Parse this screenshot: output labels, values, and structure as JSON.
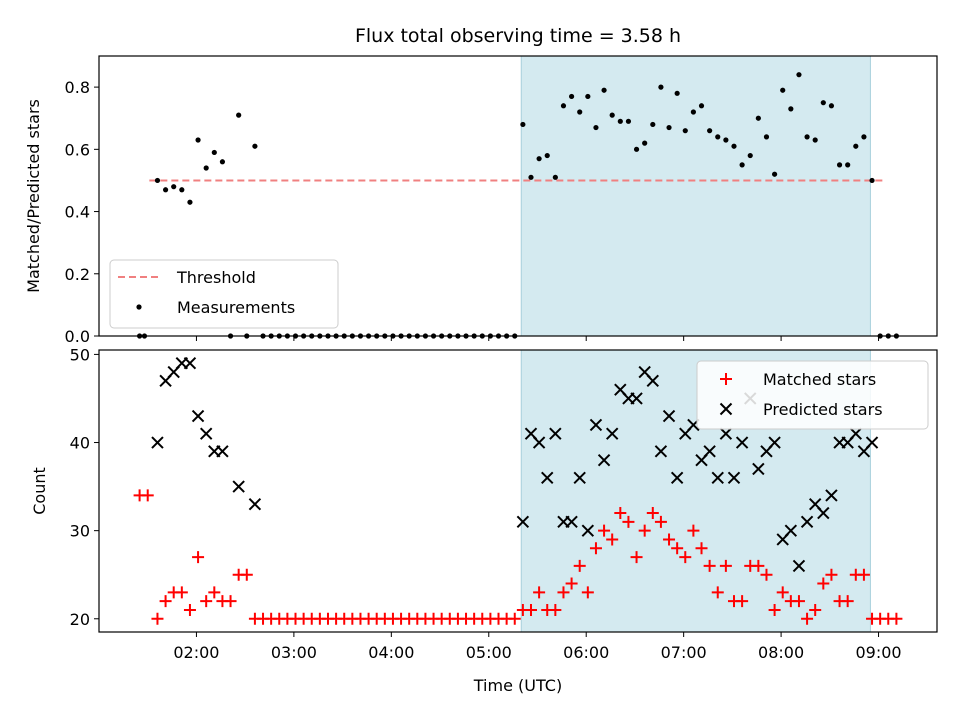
{
  "title": "Flux total observing time = 3.58 h",
  "chart_data": [
    {
      "type": "scatter",
      "ylabel": "Matched/Predicted stars",
      "ylim": [
        0.0,
        0.9
      ],
      "yticks": [
        "0.0",
        "0.2",
        "0.4",
        "0.6",
        "0.8"
      ],
      "ytick_values": [
        0.0,
        0.2,
        0.4,
        0.6,
        0.8
      ],
      "threshold": {
        "name": "Threshold",
        "value": 0.5,
        "x_range": [
          "01:31",
          "09:04"
        ],
        "color": "#f08080"
      },
      "shaded_region": {
        "x_range": [
          "05:20",
          "08:55"
        ],
        "color": "#d4eaf0"
      },
      "legend": {
        "location": "lower-left",
        "entries": [
          "Threshold",
          "Measurements"
        ]
      },
      "series": [
        {
          "name": "Measurements",
          "color": "#000000",
          "x": [
            "01:25",
            "01:28",
            "01:36",
            "01:41",
            "01:46",
            "01:51",
            "01:56",
            "02:01",
            "02:06",
            "02:11",
            "02:16",
            "02:21",
            "02:26",
            "02:31",
            "02:36",
            "02:41",
            "02:46",
            "02:51",
            "02:56",
            "03:01",
            "03:06",
            "03:11",
            "03:16",
            "03:21",
            "03:26",
            "03:31",
            "03:36",
            "03:41",
            "03:46",
            "03:51",
            "03:56",
            "04:01",
            "04:06",
            "04:11",
            "04:16",
            "04:21",
            "04:26",
            "04:31",
            "04:36",
            "04:41",
            "04:46",
            "04:51",
            "04:56",
            "05:01",
            "05:06",
            "05:11",
            "05:16",
            "05:21",
            "05:26",
            "05:31",
            "05:36",
            "05:41",
            "05:46",
            "05:51",
            "05:56",
            "06:01",
            "06:06",
            "06:11",
            "06:16",
            "06:21",
            "06:26",
            "06:31",
            "06:36",
            "06:41",
            "06:46",
            "06:51",
            "06:56",
            "07:01",
            "07:06",
            "07:11",
            "07:16",
            "07:21",
            "07:26",
            "07:31",
            "07:36",
            "07:41",
            "07:46",
            "07:51",
            "07:56",
            "08:01",
            "08:06",
            "08:11",
            "08:16",
            "08:21",
            "08:26",
            "08:31",
            "08:36",
            "08:41",
            "08:46",
            "08:51",
            "08:56",
            "09:01",
            "09:06",
            "09:11"
          ],
          "y": [
            0,
            0,
            0.5,
            0.47,
            0.48,
            0.47,
            0.43,
            0.63,
            0.54,
            0.59,
            0.56,
            0,
            0.71,
            0,
            0.61,
            0,
            0,
            0,
            0,
            0,
            0,
            0,
            0,
            0,
            0,
            0,
            0,
            0,
            0,
            0,
            0,
            0,
            0,
            0,
            0,
            0,
            0,
            0,
            0,
            0,
            0,
            0,
            0,
            0,
            0,
            0,
            0,
            0.68,
            0.51,
            0.57,
            0.58,
            0.51,
            0.74,
            0.77,
            0.72,
            0.77,
            0.67,
            0.79,
            0.71,
            0.69,
            0.69,
            0.6,
            0.62,
            0.68,
            0.8,
            0.67,
            0.78,
            0.66,
            0.72,
            0.74,
            0.66,
            0.64,
            0.63,
            0.61,
            0.55,
            0.58,
            0.7,
            0.64,
            0.52,
            0.79,
            0.73,
            0.84,
            0.64,
            0.63,
            0.75,
            0.74,
            0.55,
            0.55,
            0.61,
            0.64,
            0.5,
            0,
            0,
            0
          ]
        }
      ]
    },
    {
      "type": "scatter",
      "ylabel": "Count",
      "xlabel": "Time (UTC)",
      "ylim": [
        18.5,
        50.5
      ],
      "yticks": [
        "20",
        "30",
        "40",
        "50"
      ],
      "ytick_values": [
        20,
        30,
        40,
        50
      ],
      "xlim": [
        "01:00",
        "09:36"
      ],
      "xticks": [
        "02:00",
        "03:00",
        "04:00",
        "05:00",
        "06:00",
        "07:00",
        "08:00",
        "09:00"
      ],
      "shaded_region": {
        "x_range": [
          "05:20",
          "08:55"
        ],
        "color": "#d4eaf0"
      },
      "legend": {
        "location": "top-right",
        "entries": [
          "Matched stars",
          "Predicted stars"
        ]
      },
      "series": [
        {
          "name": "Matched stars",
          "marker": "plus",
          "color": "#ff0000",
          "x": [
            "01:25",
            "01:30",
            "01:36",
            "01:41",
            "01:46",
            "01:51",
            "01:56",
            "02:01",
            "02:06",
            "02:11",
            "02:16",
            "02:21",
            "02:26",
            "02:31",
            "02:36",
            "02:41",
            "02:46",
            "02:51",
            "02:56",
            "03:01",
            "03:06",
            "03:11",
            "03:16",
            "03:21",
            "03:26",
            "03:31",
            "03:36",
            "03:41",
            "03:46",
            "03:51",
            "03:56",
            "04:01",
            "04:06",
            "04:11",
            "04:16",
            "04:21",
            "04:26",
            "04:31",
            "04:36",
            "04:41",
            "04:46",
            "04:51",
            "04:56",
            "05:01",
            "05:06",
            "05:11",
            "05:16",
            "05:21",
            "05:26",
            "05:31",
            "05:36",
            "05:41",
            "05:46",
            "05:51",
            "05:56",
            "06:01",
            "06:06",
            "06:11",
            "06:16",
            "06:21",
            "06:26",
            "06:31",
            "06:36",
            "06:41",
            "06:46",
            "06:51",
            "06:56",
            "07:01",
            "07:06",
            "07:11",
            "07:16",
            "07:21",
            "07:26",
            "07:31",
            "07:36",
            "07:41",
            "07:46",
            "07:51",
            "07:56",
            "08:01",
            "08:06",
            "08:11",
            "08:16",
            "08:21",
            "08:26",
            "08:31",
            "08:36",
            "08:41",
            "08:46",
            "08:51",
            "08:56",
            "09:01",
            "09:06",
            "09:11"
          ],
          "y": [
            34,
            34,
            20,
            22,
            23,
            23,
            21,
            27,
            22,
            23,
            22,
            22,
            25,
            25,
            20,
            20,
            20,
            20,
            20,
            20,
            20,
            20,
            20,
            20,
            20,
            20,
            20,
            20,
            20,
            20,
            20,
            20,
            20,
            20,
            20,
            20,
            20,
            20,
            20,
            20,
            20,
            20,
            20,
            20,
            20,
            20,
            20,
            21,
            21,
            23,
            21,
            21,
            23,
            24,
            26,
            23,
            28,
            30,
            29,
            32,
            31,
            27,
            30,
            32,
            31,
            29,
            28,
            27,
            30,
            28,
            26,
            23,
            26,
            22,
            22,
            26,
            26,
            25,
            21,
            23,
            22,
            22,
            20,
            21,
            24,
            25,
            22,
            22,
            25,
            25,
            20,
            20,
            20,
            20
          ]
        },
        {
          "name": "Predicted stars",
          "marker": "x",
          "color": "#000000",
          "x": [
            "01:36",
            "01:41",
            "01:46",
            "01:51",
            "01:56",
            "02:01",
            "02:06",
            "02:11",
            "02:16",
            "02:26",
            "02:36",
            "05:21",
            "05:26",
            "05:31",
            "05:36",
            "05:41",
            "05:46",
            "05:51",
            "05:56",
            "06:01",
            "06:06",
            "06:11",
            "06:16",
            "06:21",
            "06:26",
            "06:31",
            "06:36",
            "06:41",
            "06:46",
            "06:51",
            "06:56",
            "07:01",
            "07:06",
            "07:11",
            "07:16",
            "07:21",
            "07:26",
            "07:31",
            "07:36",
            "07:41",
            "07:46",
            "07:51",
            "07:56",
            "08:01",
            "08:06",
            "08:11",
            "08:16",
            "08:21",
            "08:26",
            "08:31",
            "08:36",
            "08:41",
            "08:46",
            "08:51",
            "08:56"
          ],
          "y": [
            40,
            47,
            48,
            49,
            49,
            43,
            41,
            39,
            39,
            35,
            33,
            31,
            41,
            40,
            36,
            41,
            31,
            31,
            36,
            30,
            42,
            38,
            41,
            46,
            45,
            45,
            48,
            47,
            39,
            43,
            36,
            41,
            42,
            38,
            39,
            36,
            41,
            36,
            40,
            45,
            37,
            39,
            40,
            29,
            30,
            26,
            31,
            33,
            32,
            34,
            40,
            40,
            41,
            39,
            40
          ]
        }
      ]
    }
  ]
}
